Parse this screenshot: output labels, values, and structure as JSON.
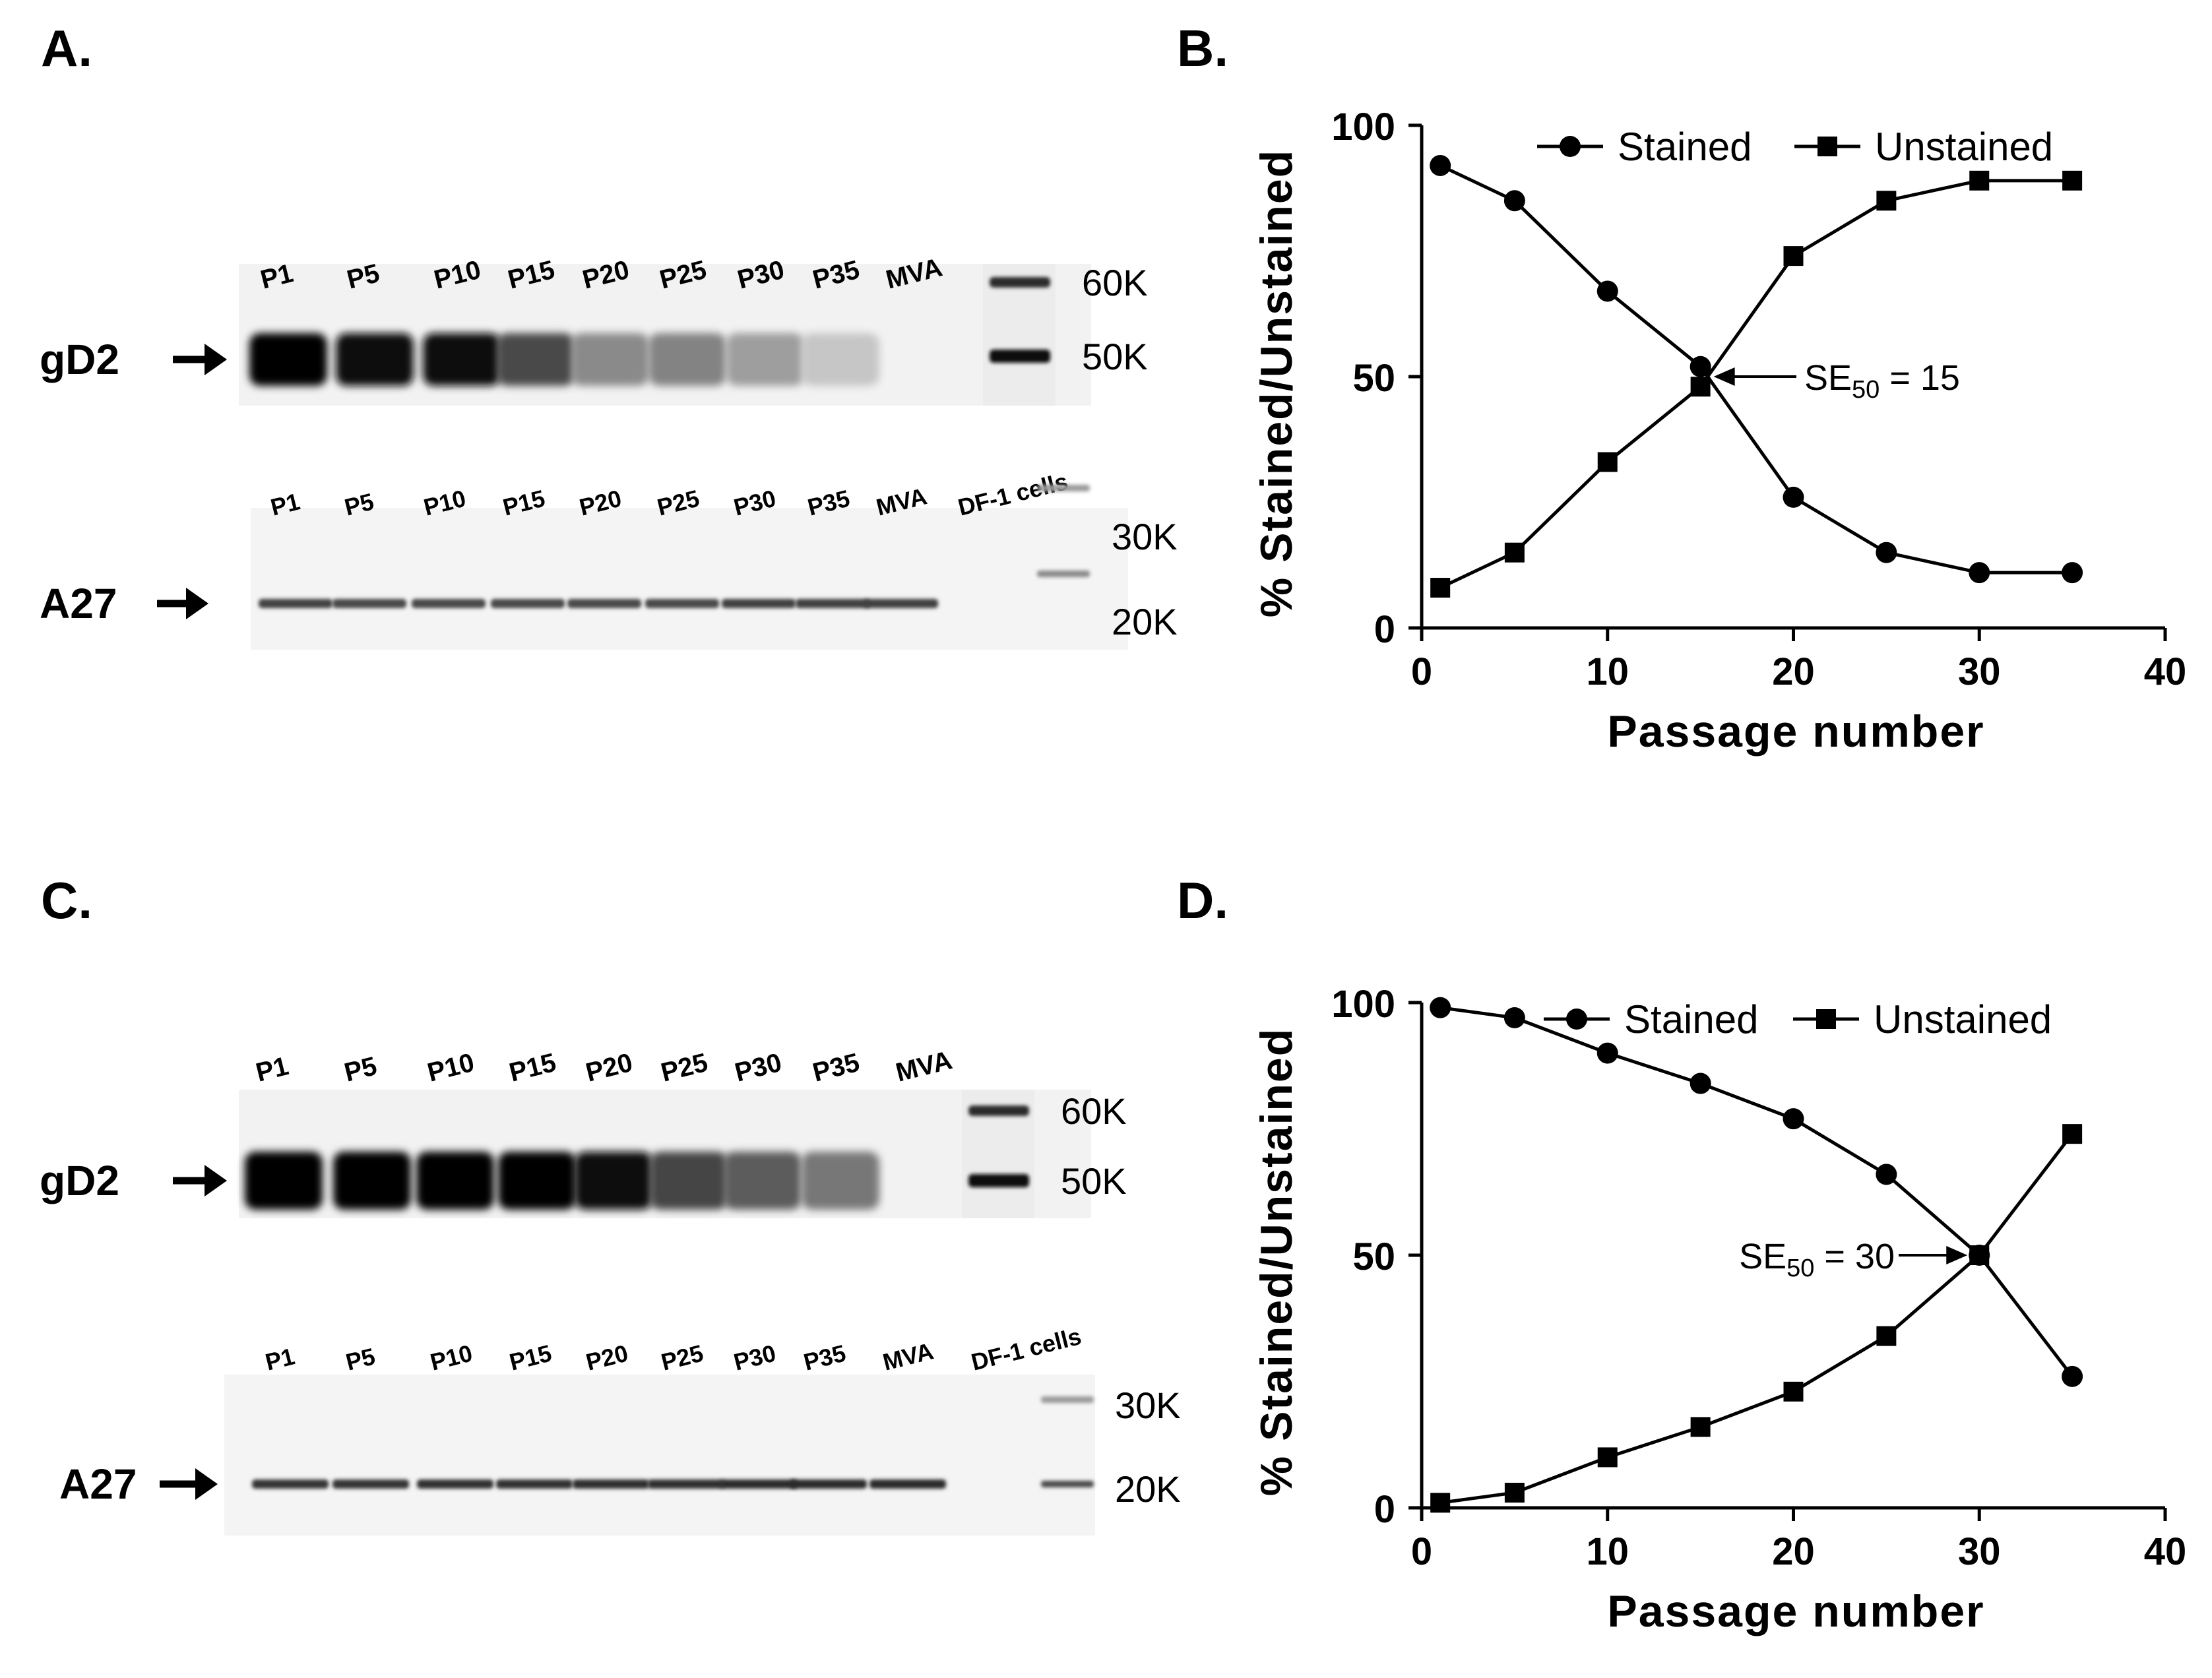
{
  "panels": {
    "A": {
      "label": "A.",
      "gd2": {
        "protein": "gD2",
        "lanes": [
          "P1",
          "P5",
          "P10",
          "P15",
          "P20",
          "P25",
          "P30",
          "P35",
          "MVA"
        ],
        "intensity": [
          1.0,
          0.98,
          0.96,
          0.7,
          0.42,
          0.45,
          0.33,
          0.16,
          0.0
        ],
        "markers": [
          "60K",
          "50K"
        ]
      },
      "a27": {
        "protein": "A27",
        "lanes": [
          "P1",
          "P5",
          "P10",
          "P15",
          "P20",
          "P25",
          "P30",
          "P35",
          "MVA",
          "DF-1 cells"
        ],
        "intensity": [
          0.78,
          0.76,
          0.76,
          0.76,
          0.76,
          0.76,
          0.8,
          0.8,
          0.8,
          0.0
        ],
        "markers": [
          "30K",
          "20K"
        ]
      }
    },
    "C": {
      "label": "C.",
      "gd2": {
        "protein": "gD2",
        "lanes": [
          "P1",
          "P5",
          "P10",
          "P15",
          "P20",
          "P25",
          "P30",
          "P35",
          "MVA"
        ],
        "intensity": [
          1.0,
          1.0,
          1.0,
          1.0,
          0.98,
          0.72,
          0.62,
          0.5,
          0.0
        ],
        "markers": [
          "60K",
          "50K"
        ]
      },
      "a27": {
        "protein": "A27",
        "lanes": [
          "P1",
          "P5",
          "P10",
          "P15",
          "P20",
          "P25",
          "P30",
          "P35",
          "MVA",
          "DF-1 cells"
        ],
        "intensity": [
          0.85,
          0.85,
          0.86,
          0.86,
          0.88,
          0.88,
          0.9,
          0.9,
          0.9,
          0.0
        ],
        "markers": [
          "30K",
          "20K"
        ]
      }
    },
    "B": {
      "label": "B."
    },
    "D": {
      "label": "D."
    }
  },
  "chart_data": [
    {
      "id": "B",
      "type": "line",
      "xlabel": "Passage number",
      "ylabel": "% Stained/Unstained",
      "xlim": [
        0,
        40
      ],
      "ylim": [
        0,
        100
      ],
      "xticks": [
        0,
        10,
        20,
        30,
        40
      ],
      "yticks": [
        0,
        50,
        100
      ],
      "x": [
        1,
        5,
        10,
        15,
        20,
        25,
        30,
        35
      ],
      "series": [
        {
          "name": "Stained",
          "marker": "circle",
          "values": [
            92,
            85,
            67,
            52,
            26,
            15,
            11,
            11
          ]
        },
        {
          "name": "Unstained",
          "marker": "square",
          "values": [
            8,
            15,
            33,
            48,
            74,
            85,
            89,
            89
          ]
        }
      ],
      "annotation": {
        "prefix": "SE",
        "sub": "50",
        "suffix": " = 15",
        "x": 15,
        "y": 50
      },
      "legend_position": "top-right"
    },
    {
      "id": "D",
      "type": "line",
      "xlabel": "Passage number",
      "ylabel": "% Stained/Unstained",
      "xlim": [
        0,
        40
      ],
      "ylim": [
        0,
        100
      ],
      "xticks": [
        0,
        10,
        20,
        30,
        40
      ],
      "yticks": [
        0,
        50,
        100
      ],
      "x": [
        1,
        5,
        10,
        15,
        20,
        25,
        30,
        35
      ],
      "series": [
        {
          "name": "Stained",
          "marker": "circle",
          "values": [
            99,
            97,
            90,
            84,
            77,
            66,
            50,
            26
          ]
        },
        {
          "name": "Unstained",
          "marker": "square",
          "values": [
            1,
            3,
            10,
            16,
            23,
            34,
            50,
            74
          ]
        }
      ],
      "annotation": {
        "prefix": "SE",
        "sub": "50",
        "suffix": " = 30",
        "x": 30,
        "y": 50
      },
      "legend_position": "top-right"
    }
  ]
}
